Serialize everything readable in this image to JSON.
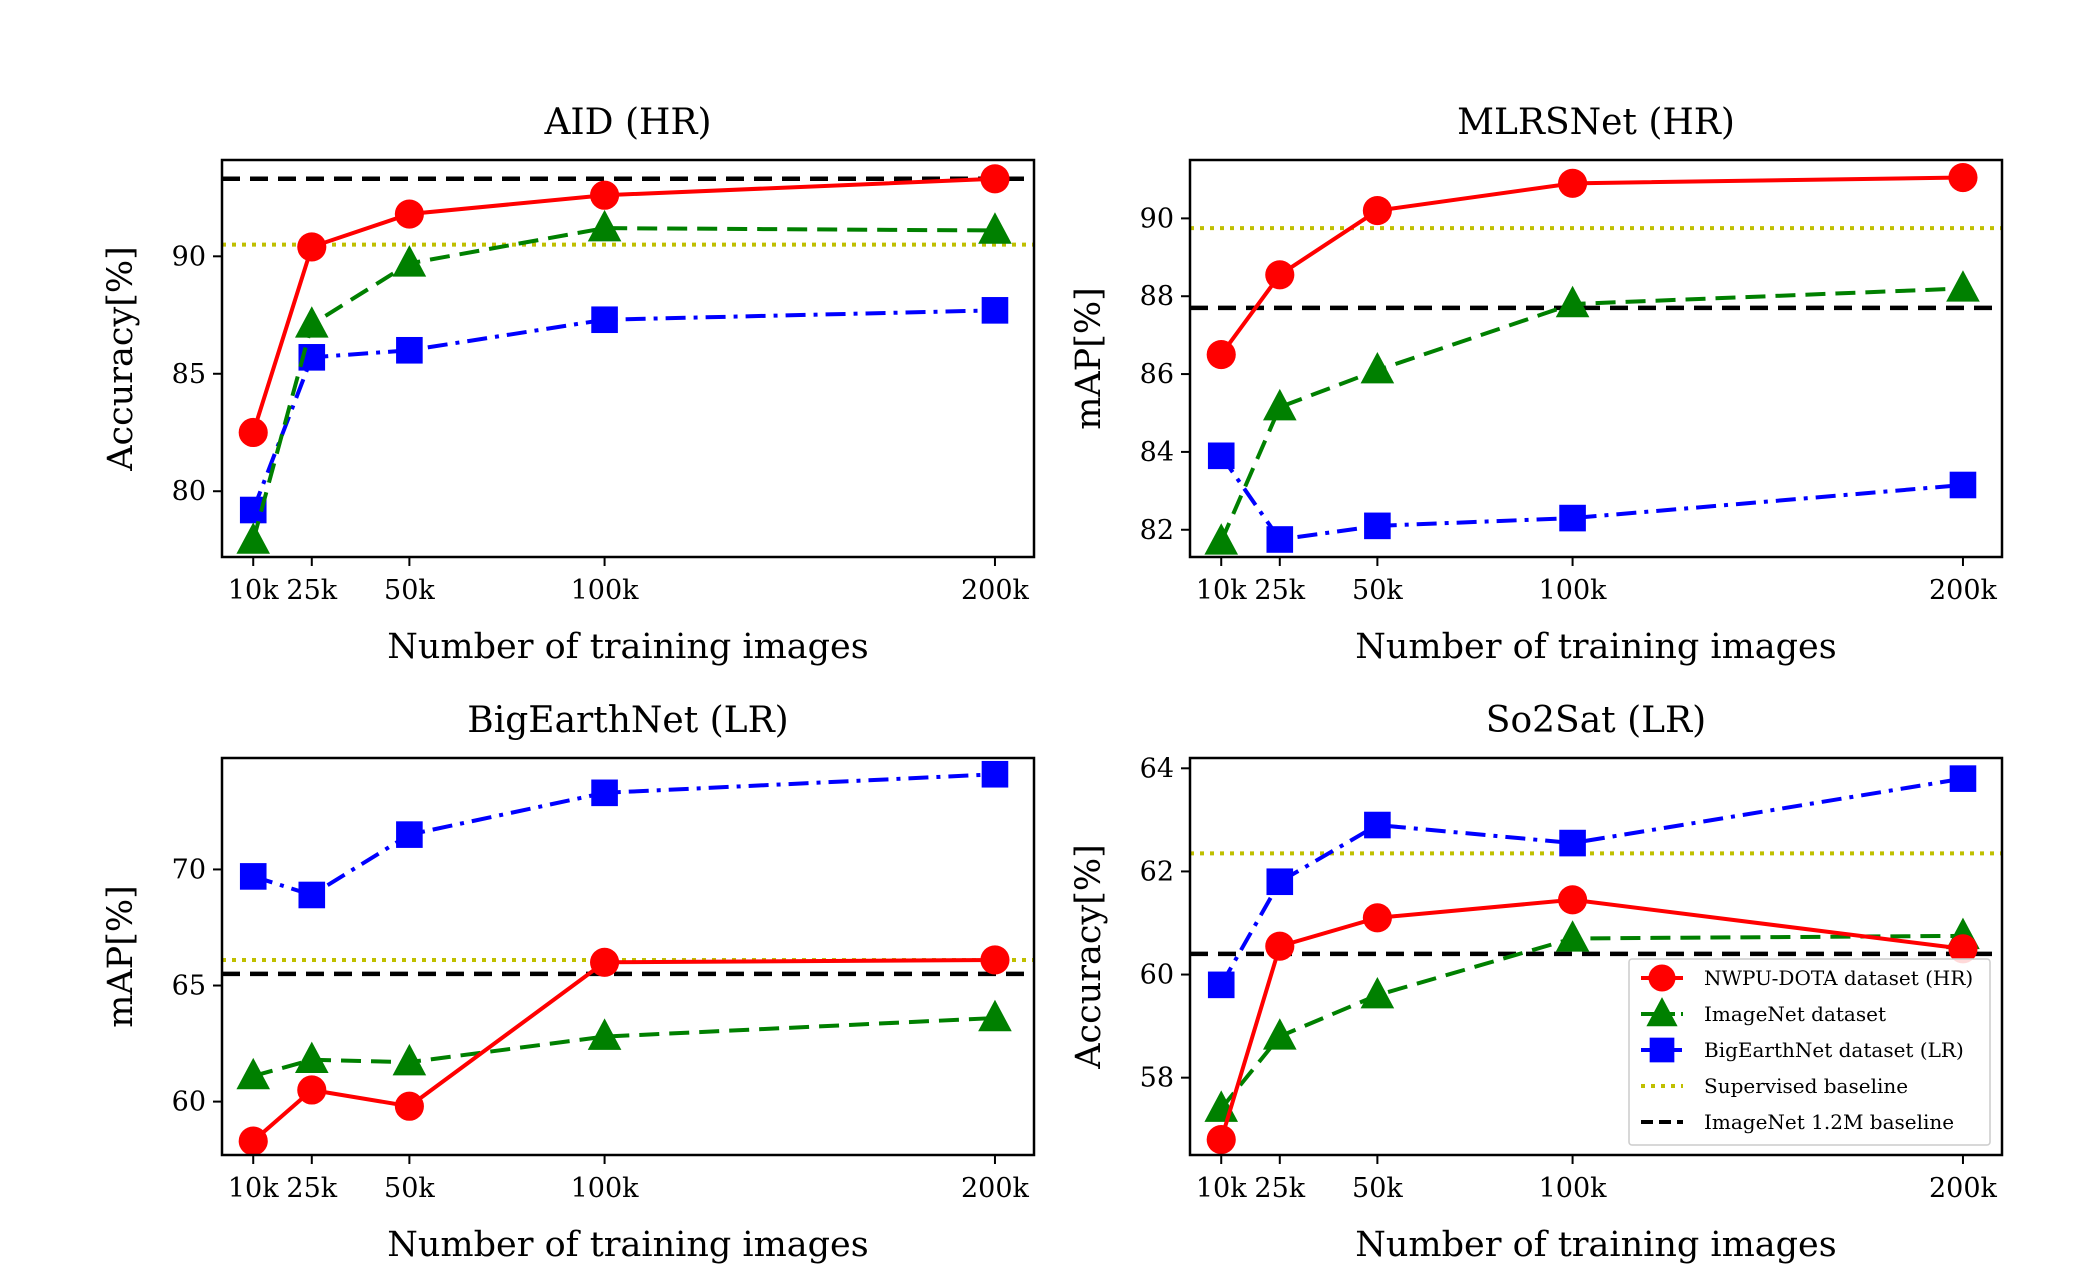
{
  "figure": {
    "legend_panel": 3,
    "colors": {
      "nwpu": "#ff0000",
      "imagenet": "#008000",
      "bigearthnet": "#0000ff",
      "supervised": "#bfbf00",
      "imagenet12m": "#000000"
    },
    "legend": {
      "nwpu": "NWPU-DOTA dataset (HR)",
      "imagenet": "ImageNet dataset",
      "bigearthnet": "BigEarthNet dataset (LR)",
      "supervised": "Supervised baseline",
      "imagenet12m": "ImageNet 1.2M baseline"
    }
  },
  "chart_data": [
    {
      "type": "line",
      "title": "AID (HR)",
      "xlabel": "Number of training images",
      "ylabel": "Accuracy[%]",
      "x": [
        10000,
        25000,
        50000,
        100000,
        200000
      ],
      "xticks": [
        10000,
        25000,
        50000,
        100000,
        200000
      ],
      "xtick_labels": [
        "10k",
        "25k",
        "50k",
        "100k",
        "200k"
      ],
      "xlim": [
        2000,
        210000
      ],
      "ylim": [
        77.2,
        94.1
      ],
      "yticks": [
        80,
        85,
        90
      ],
      "series": [
        {
          "key": "nwpu",
          "values": [
            82.5,
            90.4,
            91.8,
            92.6,
            93.3
          ]
        },
        {
          "key": "imagenet",
          "values": [
            77.9,
            87.1,
            89.7,
            91.2,
            91.1
          ]
        },
        {
          "key": "bigearthnet",
          "values": [
            79.2,
            85.7,
            86.0,
            87.3,
            87.7
          ]
        }
      ],
      "baselines": {
        "supervised": 90.5,
        "imagenet12m": 93.3
      },
      "grid": false
    },
    {
      "type": "line",
      "title": "MLRSNet (HR)",
      "xlabel": "Number of training images",
      "ylabel": "mAP[%]",
      "x": [
        10000,
        25000,
        50000,
        100000,
        200000
      ],
      "xticks": [
        10000,
        25000,
        50000,
        100000,
        200000
      ],
      "xtick_labels": [
        "10k",
        "25k",
        "50k",
        "100k",
        "200k"
      ],
      "xlim": [
        2000,
        210000
      ],
      "ylim": [
        81.3,
        91.5
      ],
      "yticks": [
        82,
        84,
        86,
        88,
        90
      ],
      "series": [
        {
          "key": "nwpu",
          "values": [
            86.5,
            88.55,
            90.2,
            90.9,
            91.05
          ]
        },
        {
          "key": "imagenet",
          "values": [
            81.7,
            85.15,
            86.1,
            87.8,
            88.2
          ]
        },
        {
          "key": "bigearthnet",
          "values": [
            83.9,
            81.75,
            82.1,
            82.3,
            83.15
          ]
        }
      ],
      "baselines": {
        "supervised": 89.75,
        "imagenet12m": 87.7
      },
      "grid": false
    },
    {
      "type": "line",
      "title": "BigEarthNet (LR)",
      "xlabel": "Number of training images",
      "ylabel": "mAP[%]",
      "x": [
        10000,
        25000,
        50000,
        100000,
        200000
      ],
      "xticks": [
        10000,
        25000,
        50000,
        100000,
        200000
      ],
      "xtick_labels": [
        "10k",
        "25k",
        "50k",
        "100k",
        "200k"
      ],
      "xlim": [
        2000,
        210000
      ],
      "ylim": [
        57.7,
        74.8
      ],
      "yticks": [
        60,
        65,
        70
      ],
      "series": [
        {
          "key": "nwpu",
          "values": [
            58.3,
            60.5,
            59.8,
            66.0,
            66.1
          ]
        },
        {
          "key": "imagenet",
          "values": [
            61.1,
            61.8,
            61.7,
            62.8,
            63.6
          ]
        },
        {
          "key": "bigearthnet",
          "values": [
            69.7,
            68.9,
            71.5,
            73.3,
            74.1
          ]
        }
      ],
      "baselines": {
        "supervised": 66.1,
        "imagenet12m": 65.5
      },
      "grid": false
    },
    {
      "type": "line",
      "title": "So2Sat (LR)",
      "xlabel": "Number of training images",
      "ylabel": "Accuracy[%]",
      "x": [
        10000,
        25000,
        50000,
        100000,
        200000
      ],
      "xticks": [
        10000,
        25000,
        50000,
        100000,
        200000
      ],
      "xtick_labels": [
        "10k",
        "25k",
        "50k",
        "100k",
        "200k"
      ],
      "xlim": [
        2000,
        210000
      ],
      "ylim": [
        56.5,
        64.2
      ],
      "yticks": [
        58,
        60,
        62,
        64
      ],
      "series": [
        {
          "key": "nwpu",
          "values": [
            56.8,
            60.55,
            61.1,
            61.45,
            60.5
          ]
        },
        {
          "key": "imagenet",
          "values": [
            57.4,
            58.8,
            59.6,
            60.7,
            60.75
          ]
        },
        {
          "key": "bigearthnet",
          "values": [
            59.8,
            61.8,
            62.9,
            62.55,
            63.8
          ]
        }
      ],
      "baselines": {
        "supervised": 62.35,
        "imagenet12m": 60.4
      },
      "legend": "lower-right",
      "grid": false
    }
  ]
}
